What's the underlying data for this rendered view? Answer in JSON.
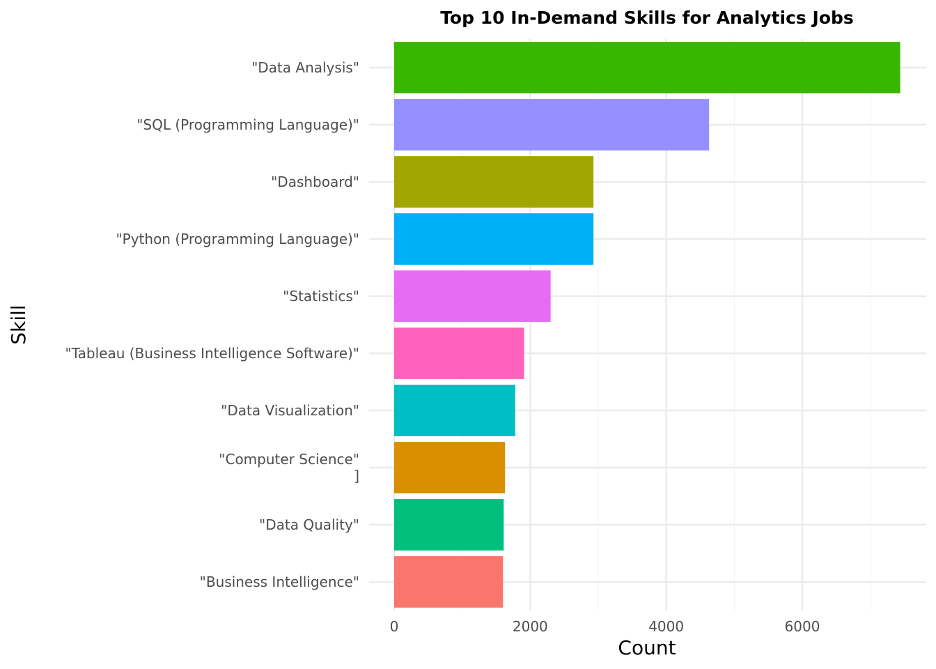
{
  "chart_data": {
    "type": "bar",
    "orientation": "horizontal",
    "title": "Top 10 In-Demand Skills for Analytics Jobs",
    "xlabel": "Count",
    "ylabel": "Skill",
    "xlim": [
      0,
      7800
    ],
    "x_ticks": [
      0,
      2000,
      4000,
      6000
    ],
    "x_tick_labels": [
      "0",
      "2000",
      "4000",
      "6000"
    ],
    "grid": true,
    "legend": "none",
    "categories": [
      "\"Data Analysis\"",
      "\"SQL (Programming Language)\"",
      "\"Dashboard\"",
      "\"Python (Programming Language)\"",
      "\"Statistics\"",
      "\"Tableau (Business Intelligence Software)\"",
      "\"Data Visualization\"",
      "\"Computer Science\"\n]",
      "\"Data Quality\"",
      "\"Business Intelligence\""
    ],
    "values": [
      7440,
      4630,
      2930,
      2930,
      2300,
      1910,
      1780,
      1630,
      1610,
      1600
    ],
    "colors": [
      "#39b600",
      "#9590ff",
      "#a3a500",
      "#00b0f6",
      "#e76bf3",
      "#ff62bc",
      "#00bfc4",
      "#d89000",
      "#00bf7d",
      "#f8766d"
    ]
  }
}
